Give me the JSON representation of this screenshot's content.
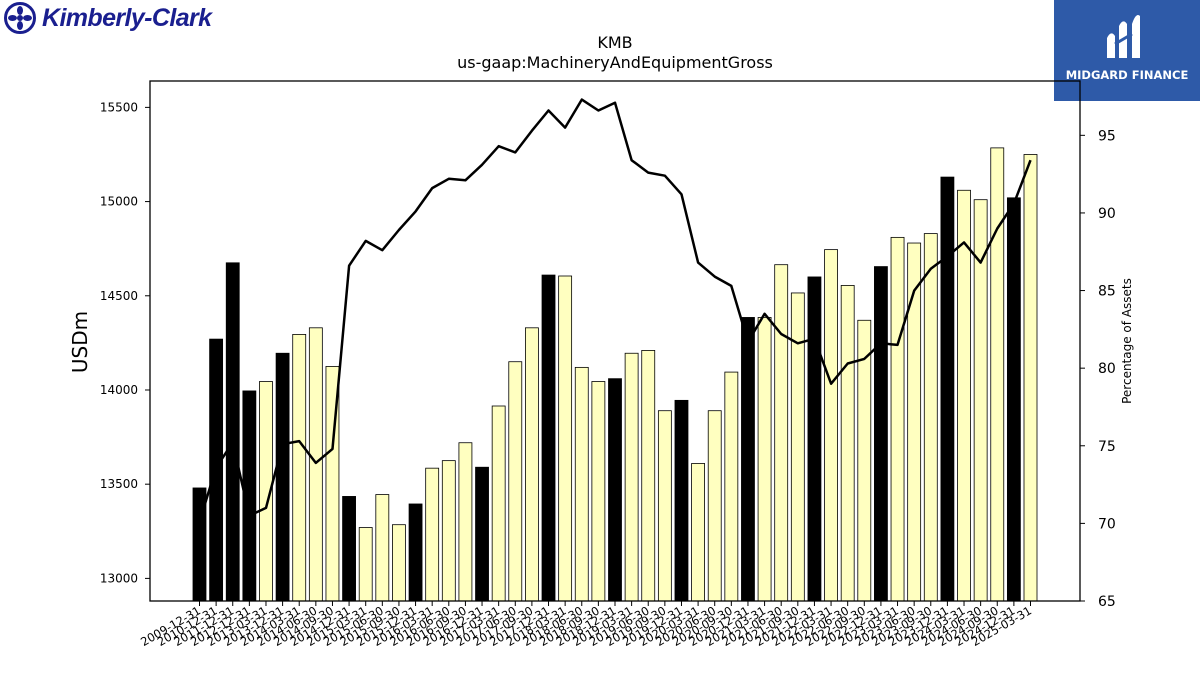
{
  "header": {
    "company_logo_text": "Kimberly-Clark",
    "publisher_logo_text": "MIDGARD FINANCE"
  },
  "colors": {
    "bar_highlight": "#000000",
    "bar_default": "#ffffc0",
    "bar_edge": "#000000",
    "line": "#000000",
    "company_logo": "#1a1f8f",
    "publisher_logo_bg": "#2e5aa8"
  },
  "chart_data": {
    "type": "bar",
    "title": "KMB",
    "subtitle": "us-gaap:MachineryAndEquipmentGross",
    "ylabel": "USDm",
    "y2label": "Percentage of Assets",
    "ylim": [
      12880,
      15640
    ],
    "y2lim": [
      65,
      98.5
    ],
    "yticks": [
      13000,
      13500,
      14000,
      14500,
      15000,
      15500
    ],
    "y2ticks": [
      65,
      70,
      75,
      80,
      85,
      90,
      95
    ],
    "categories": [
      "2009-12-31",
      "2010-12-31",
      "2011-12-31",
      "2012-12-31",
      "2013-03-31",
      "2013-12-31",
      "2014-03-31",
      "2014-06-30",
      "2014-09-30",
      "2014-12-31",
      "2015-03-31",
      "2015-06-30",
      "2015-09-30",
      "2015-12-31",
      "2016-03-31",
      "2016-06-30",
      "2016-09-30",
      "2016-12-31",
      "2017-03-31",
      "2017-06-30",
      "2017-09-30",
      "2017-12-31",
      "2018-03-31",
      "2018-06-30",
      "2018-09-30",
      "2018-12-31",
      "2019-03-31",
      "2019-06-30",
      "2019-09-30",
      "2019-12-31",
      "2020-03-31",
      "2020-06-30",
      "2020-09-30",
      "2020-12-31",
      "2021-03-31",
      "2021-06-30",
      "2021-09-30",
      "2021-12-31",
      "2022-03-31",
      "2022-06-30",
      "2022-09-30",
      "2022-12-31",
      "2023-03-31",
      "2023-06-30",
      "2023-09-30",
      "2023-12-31",
      "2024-03-31",
      "2024-06-30",
      "2024-09-30",
      "2024-12-31",
      "2025-03-31"
    ],
    "highlight": [
      true,
      true,
      true,
      true,
      false,
      true,
      false,
      false,
      false,
      true,
      false,
      false,
      false,
      true,
      false,
      false,
      false,
      true,
      false,
      false,
      false,
      true,
      false,
      false,
      false,
      true,
      false,
      false,
      false,
      true,
      false,
      false,
      false,
      true,
      false,
      false,
      false,
      true,
      false,
      false,
      false,
      true,
      false,
      false,
      false,
      true,
      false,
      false,
      false,
      true,
      false
    ],
    "series": [
      {
        "type": "bar",
        "axis": "left",
        "values": [
          13480,
          14270,
          14675,
          13995,
          14045,
          14195,
          14295,
          14330,
          14125,
          13435,
          13270,
          13445,
          13285,
          13395,
          13585,
          13625,
          13720,
          13590,
          13915,
          14150,
          14330,
          14610,
          14605,
          14120,
          14045,
          14060,
          14195,
          14210,
          13890,
          13945,
          13610,
          13890,
          14095,
          14385,
          14385,
          14665,
          14515,
          14600,
          14745,
          14555,
          14370,
          14655,
          14810,
          14780,
          14830,
          15130,
          15060,
          15010,
          15285,
          15020,
          15250
        ]
      },
      {
        "type": "line",
        "axis": "right",
        "values": [
          70.1,
          73.6,
          75.2,
          70.5,
          71.0,
          75.1,
          75.3,
          73.9,
          74.8,
          86.6,
          88.2,
          87.6,
          88.9,
          90.1,
          91.6,
          92.2,
          92.1,
          93.1,
          94.3,
          93.9,
          95.3,
          96.6,
          95.5,
          97.3,
          96.6,
          97.1,
          93.4,
          92.6,
          92.4,
          91.2,
          86.8,
          85.9,
          85.3,
          81.7,
          83.5,
          82.2,
          81.6,
          81.9,
          79.0,
          80.3,
          80.6,
          81.6,
          81.5,
          85.0,
          86.4,
          87.2,
          88.1,
          86.8,
          89.0,
          90.6,
          93.4
        ]
      }
    ]
  }
}
